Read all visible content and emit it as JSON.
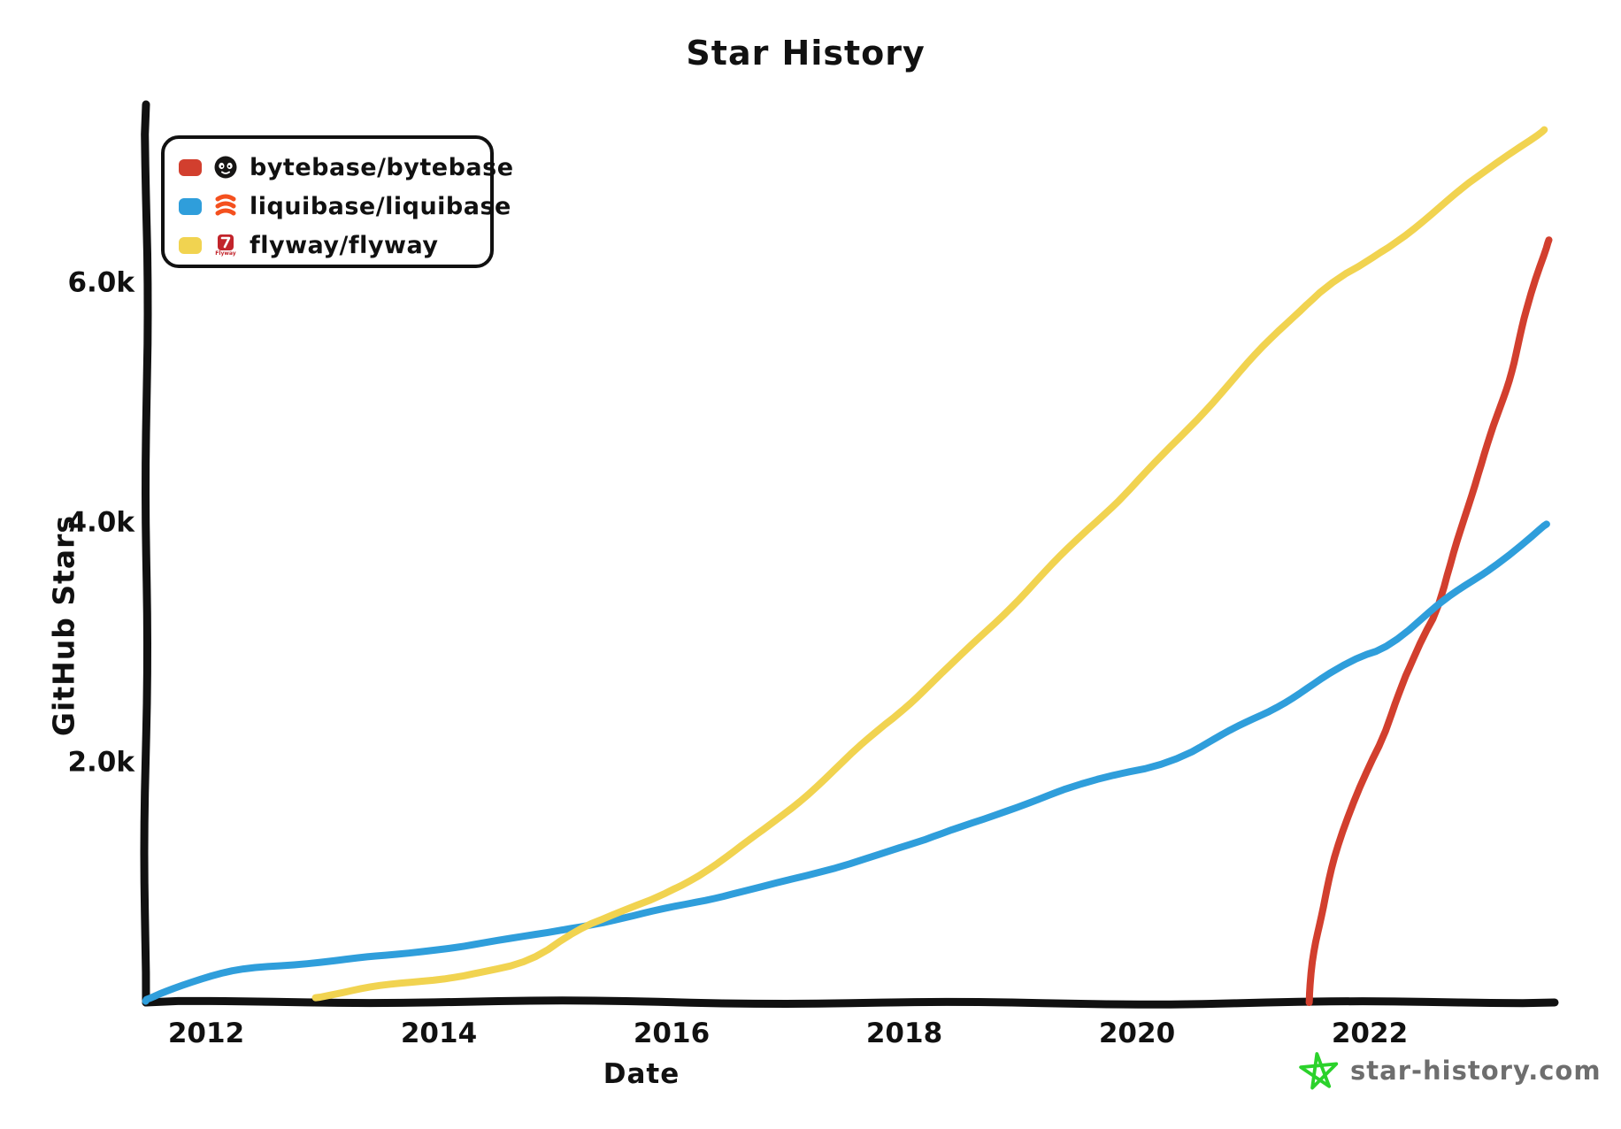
{
  "title": "Star History",
  "legend": [
    {
      "label": "bytebase/bytebase",
      "color": "#d23f2e",
      "icon": "bytebase-logo"
    },
    {
      "label": "liquibase/liquibase",
      "color": "#2f9edb",
      "icon": "liquibase-logo"
    },
    {
      "label": "flyway/flyway",
      "color": "#f1d350",
      "icon": "flyway-logo"
    }
  ],
  "watermark": {
    "text": "star-history.com",
    "star_color": "#2bd22b",
    "text_color": "#6e6e6e"
  },
  "chart_data": {
    "type": "line",
    "title": "Star History",
    "xlabel": "Date",
    "ylabel": "GitHub Stars",
    "xlim": [
      2011.45,
      2023.65
    ],
    "ylim": [
      0,
      7480
    ],
    "grid": false,
    "legend_position": "top-left",
    "x_ticks": [
      {
        "value": 2012,
        "label": "2012"
      },
      {
        "value": 2014,
        "label": "2014"
      },
      {
        "value": 2016,
        "label": "2016"
      },
      {
        "value": 2018,
        "label": "2018"
      },
      {
        "value": 2020,
        "label": "2020"
      },
      {
        "value": 2022,
        "label": "2022"
      }
    ],
    "y_ticks": [
      {
        "value": 2000,
        "label": "2.0k"
      },
      {
        "value": 4000,
        "label": "4.0k"
      },
      {
        "value": 6000,
        "label": "6.0k"
      }
    ],
    "series": [
      {
        "name": "bytebase/bytebase",
        "color": "#d23f2e",
        "points": [
          [
            2021.48,
            0
          ],
          [
            2021.52,
            390
          ],
          [
            2021.57,
            690
          ],
          [
            2021.63,
            980
          ],
          [
            2021.74,
            1350
          ],
          [
            2021.93,
            1870
          ],
          [
            2022.16,
            2310
          ],
          [
            2022.41,
            2970
          ],
          [
            2022.62,
            3340
          ],
          [
            2022.84,
            4160
          ],
          [
            2023.07,
            4820
          ],
          [
            2023.26,
            5410
          ],
          [
            2023.41,
            6000
          ],
          [
            2023.54,
            6360
          ]
        ]
      },
      {
        "name": "liquibase/liquibase",
        "color": "#2f9edb",
        "points": [
          [
            2011.48,
            10
          ],
          [
            2011.67,
            110
          ],
          [
            2012.0,
            210
          ],
          [
            2012.36,
            290
          ],
          [
            2012.81,
            330
          ],
          [
            2013.27,
            370
          ],
          [
            2013.57,
            390
          ],
          [
            2014.03,
            450
          ],
          [
            2014.33,
            480
          ],
          [
            2014.79,
            550
          ],
          [
            2015.18,
            630
          ],
          [
            2015.55,
            690
          ],
          [
            2016.32,
            870
          ],
          [
            2016.84,
            980
          ],
          [
            2017.35,
            1100
          ],
          [
            2017.83,
            1260
          ],
          [
            2018.38,
            1410
          ],
          [
            2019.18,
            1710
          ],
          [
            2019.73,
            1880
          ],
          [
            2020.27,
            2000
          ],
          [
            2020.8,
            2270
          ],
          [
            2021.33,
            2530
          ],
          [
            2021.86,
            2860
          ],
          [
            2022.17,
            2970
          ],
          [
            2022.62,
            3340
          ],
          [
            2023.16,
            3710
          ],
          [
            2023.52,
            3990
          ]
        ]
      },
      {
        "name": "flyway/flyway",
        "color": "#f1d350",
        "points": [
          [
            2012.94,
            40
          ],
          [
            2013.57,
            150
          ],
          [
            2014.33,
            240
          ],
          [
            2014.79,
            340
          ],
          [
            2015.18,
            620
          ],
          [
            2015.53,
            740
          ],
          [
            2016.0,
            910
          ],
          [
            2016.63,
            1310
          ],
          [
            2017.07,
            1650
          ],
          [
            2017.73,
            2240
          ],
          [
            2018.0,
            2460
          ],
          [
            2018.65,
            3030
          ],
          [
            2019.55,
            3920
          ],
          [
            2020.0,
            4340
          ],
          [
            2020.57,
            4930
          ],
          [
            2021.17,
            5560
          ],
          [
            2021.63,
            5980
          ],
          [
            2022.08,
            6220
          ],
          [
            2022.68,
            6700
          ],
          [
            2023.15,
            7060
          ],
          [
            2023.5,
            7280
          ]
        ]
      }
    ]
  }
}
